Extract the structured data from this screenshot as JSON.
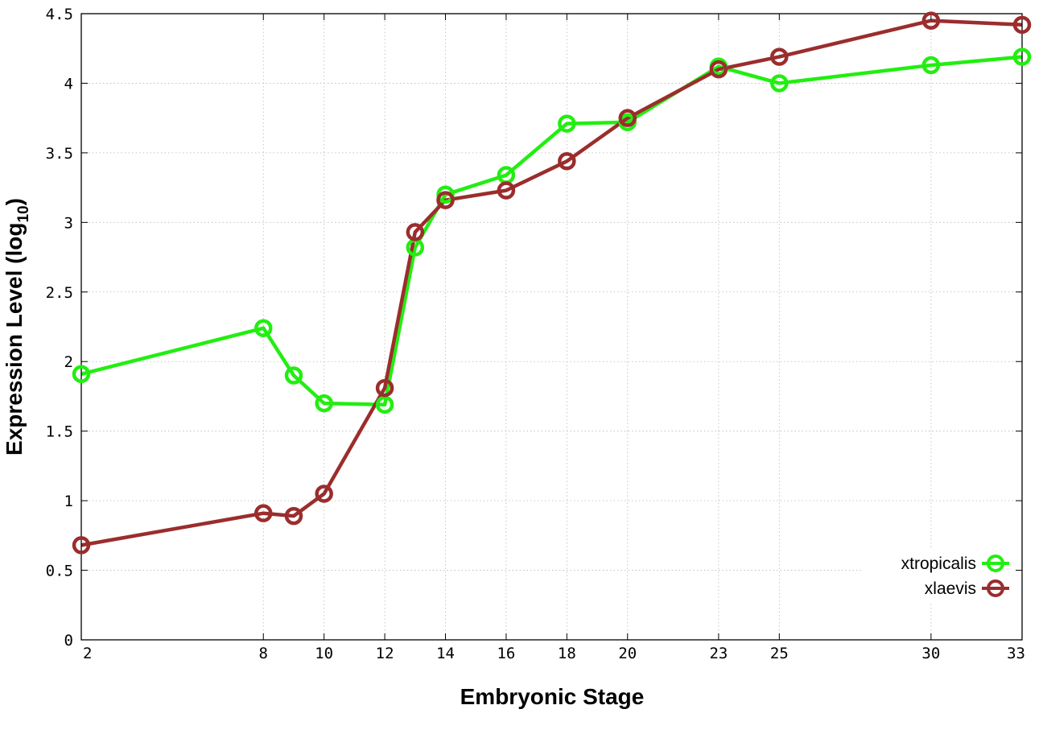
{
  "chart_data": {
    "type": "line",
    "xlabel": "Embryonic Stage",
    "ylabel_main": "Expression Level (log",
    "ylabel_sub": "10",
    "ylabel_close": ")",
    "xlim": [
      2,
      33
    ],
    "ylim": [
      0,
      4.5
    ],
    "x_ticks": [
      2,
      8,
      10,
      12,
      14,
      16,
      18,
      20,
      23,
      25,
      30,
      33
    ],
    "y_ticks": [
      0,
      0.5,
      1,
      1.5,
      2,
      2.5,
      3,
      3.5,
      4,
      4.5
    ],
    "y_tick_labels": [
      "0",
      "0.5",
      "1",
      "1.5",
      "2",
      "2.5",
      "3",
      "3.5",
      "4",
      "4.5"
    ],
    "grid": true,
    "legend_position": "bottom-right",
    "series": [
      {
        "name": "xtropicalis",
        "color": "#22ee11",
        "points": [
          {
            "x": 2,
            "y": 1.91
          },
          {
            "x": 8,
            "y": 2.24
          },
          {
            "x": 9,
            "y": 1.9
          },
          {
            "x": 10,
            "y": 1.7
          },
          {
            "x": 12,
            "y": 1.69
          },
          {
            "x": 13,
            "y": 2.82
          },
          {
            "x": 14,
            "y": 3.2
          },
          {
            "x": 16,
            "y": 3.34
          },
          {
            "x": 18,
            "y": 3.71
          },
          {
            "x": 20,
            "y": 3.72
          },
          {
            "x": 23,
            "y": 4.12
          },
          {
            "x": 25,
            "y": 4.0
          },
          {
            "x": 30,
            "y": 4.13
          },
          {
            "x": 33,
            "y": 4.19
          }
        ]
      },
      {
        "name": "xlaevis",
        "color": "#9b2d2d",
        "points": [
          {
            "x": 2,
            "y": 0.68
          },
          {
            "x": 8,
            "y": 0.91
          },
          {
            "x": 9,
            "y": 0.89
          },
          {
            "x": 10,
            "y": 1.05
          },
          {
            "x": 12,
            "y": 1.81
          },
          {
            "x": 13,
            "y": 2.93
          },
          {
            "x": 14,
            "y": 3.16
          },
          {
            "x": 16,
            "y": 3.23
          },
          {
            "x": 18,
            "y": 3.44
          },
          {
            "x": 20,
            "y": 3.75
          },
          {
            "x": 23,
            "y": 4.1
          },
          {
            "x": 25,
            "y": 4.19
          },
          {
            "x": 30,
            "y": 4.45
          },
          {
            "x": 33,
            "y": 4.42
          }
        ]
      }
    ]
  }
}
